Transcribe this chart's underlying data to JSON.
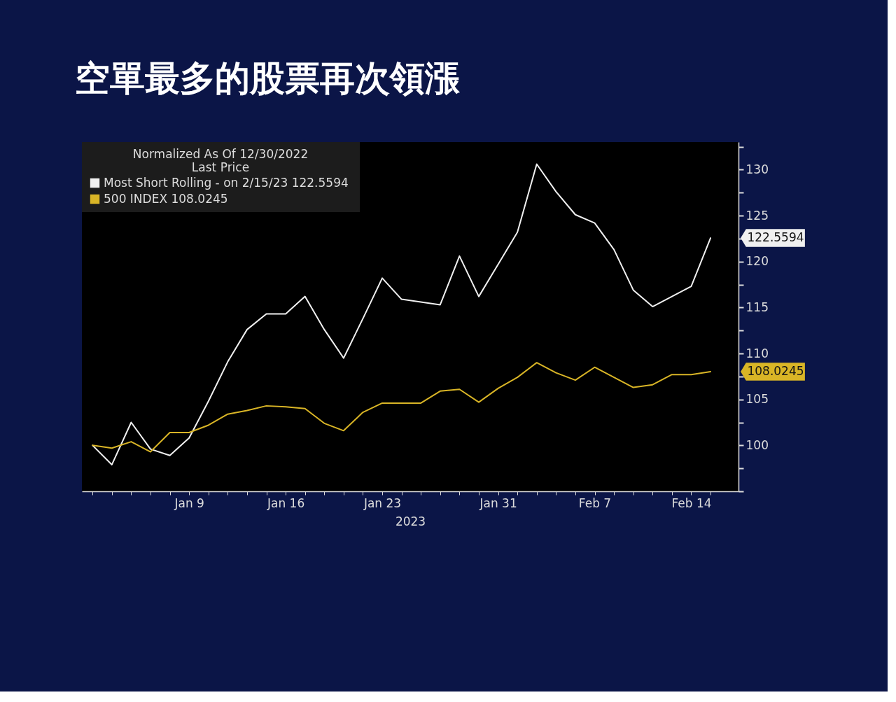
{
  "chart_data": {
    "type": "line",
    "title": "空單最多的股票再次領漲",
    "xlabel": "2023",
    "legend_title": "Normalized As Of 12/30/2022\nLast Price",
    "legend": "top left",
    "categories": [
      null,
      null,
      null,
      null,
      null,
      "Jan 9",
      null,
      null,
      null,
      null,
      "Jan 16",
      null,
      null,
      null,
      null,
      "Jan 23",
      null,
      null,
      null,
      null,
      null,
      "Jan 31",
      null,
      null,
      null,
      null,
      "Feb 7",
      null,
      null,
      null,
      null,
      "Feb 14",
      null
    ],
    "ylim": [
      95,
      133
    ],
    "yticks": [
      {
        "value": 95,
        "label": null
      },
      {
        "value": 97.5,
        "label": null
      },
      100,
      {
        "value": 102.5,
        "label": null
      },
      105,
      {
        "value": 107.5,
        "label": null
      },
      110,
      {
        "value": 112.5,
        "label": null
      },
      115,
      {
        "value": 117.5,
        "label": null
      },
      120,
      {
        "value": 122.5,
        "label": null
      },
      125,
      {
        "value": 127.5,
        "label": null
      },
      130,
      {
        "value": 132.5,
        "label": null
      }
    ],
    "annotations": [
      "122.5594",
      "108.0245"
    ],
    "series": [
      {
        "name": "Most Short Rolling -  on 2/15/23 122.5594",
        "color": "#f0f0f0",
        "values": [
          100,
          97.9,
          102.5,
          99.6,
          98.9,
          100.8,
          104.8,
          109.1,
          112.6,
          114.3,
          114.3,
          116.2,
          112.6,
          109.5,
          113.8,
          118.2,
          115.9,
          115.6,
          115.3,
          120.6,
          116.2,
          119.7,
          123.2,
          130.6,
          127.6,
          125.1,
          124.2,
          121.3,
          116.9,
          115.1,
          116.2,
          117.3,
          122.5594
        ]
      },
      {
        "name": "500 INDEX 108.0245",
        "color": "#d9b526",
        "values": [
          100,
          99.7,
          100.4,
          99.3,
          101.4,
          101.4,
          102.2,
          103.4,
          103.8,
          104.3,
          104.2,
          104.0,
          102.4,
          101.6,
          103.6,
          104.6,
          104.6,
          104.6,
          105.9,
          106.1,
          104.7,
          106.2,
          107.4,
          109.0,
          107.9,
          107.1,
          108.5,
          107.4,
          106.3,
          106.6,
          107.7,
          107.7,
          108.0245
        ]
      }
    ]
  }
}
